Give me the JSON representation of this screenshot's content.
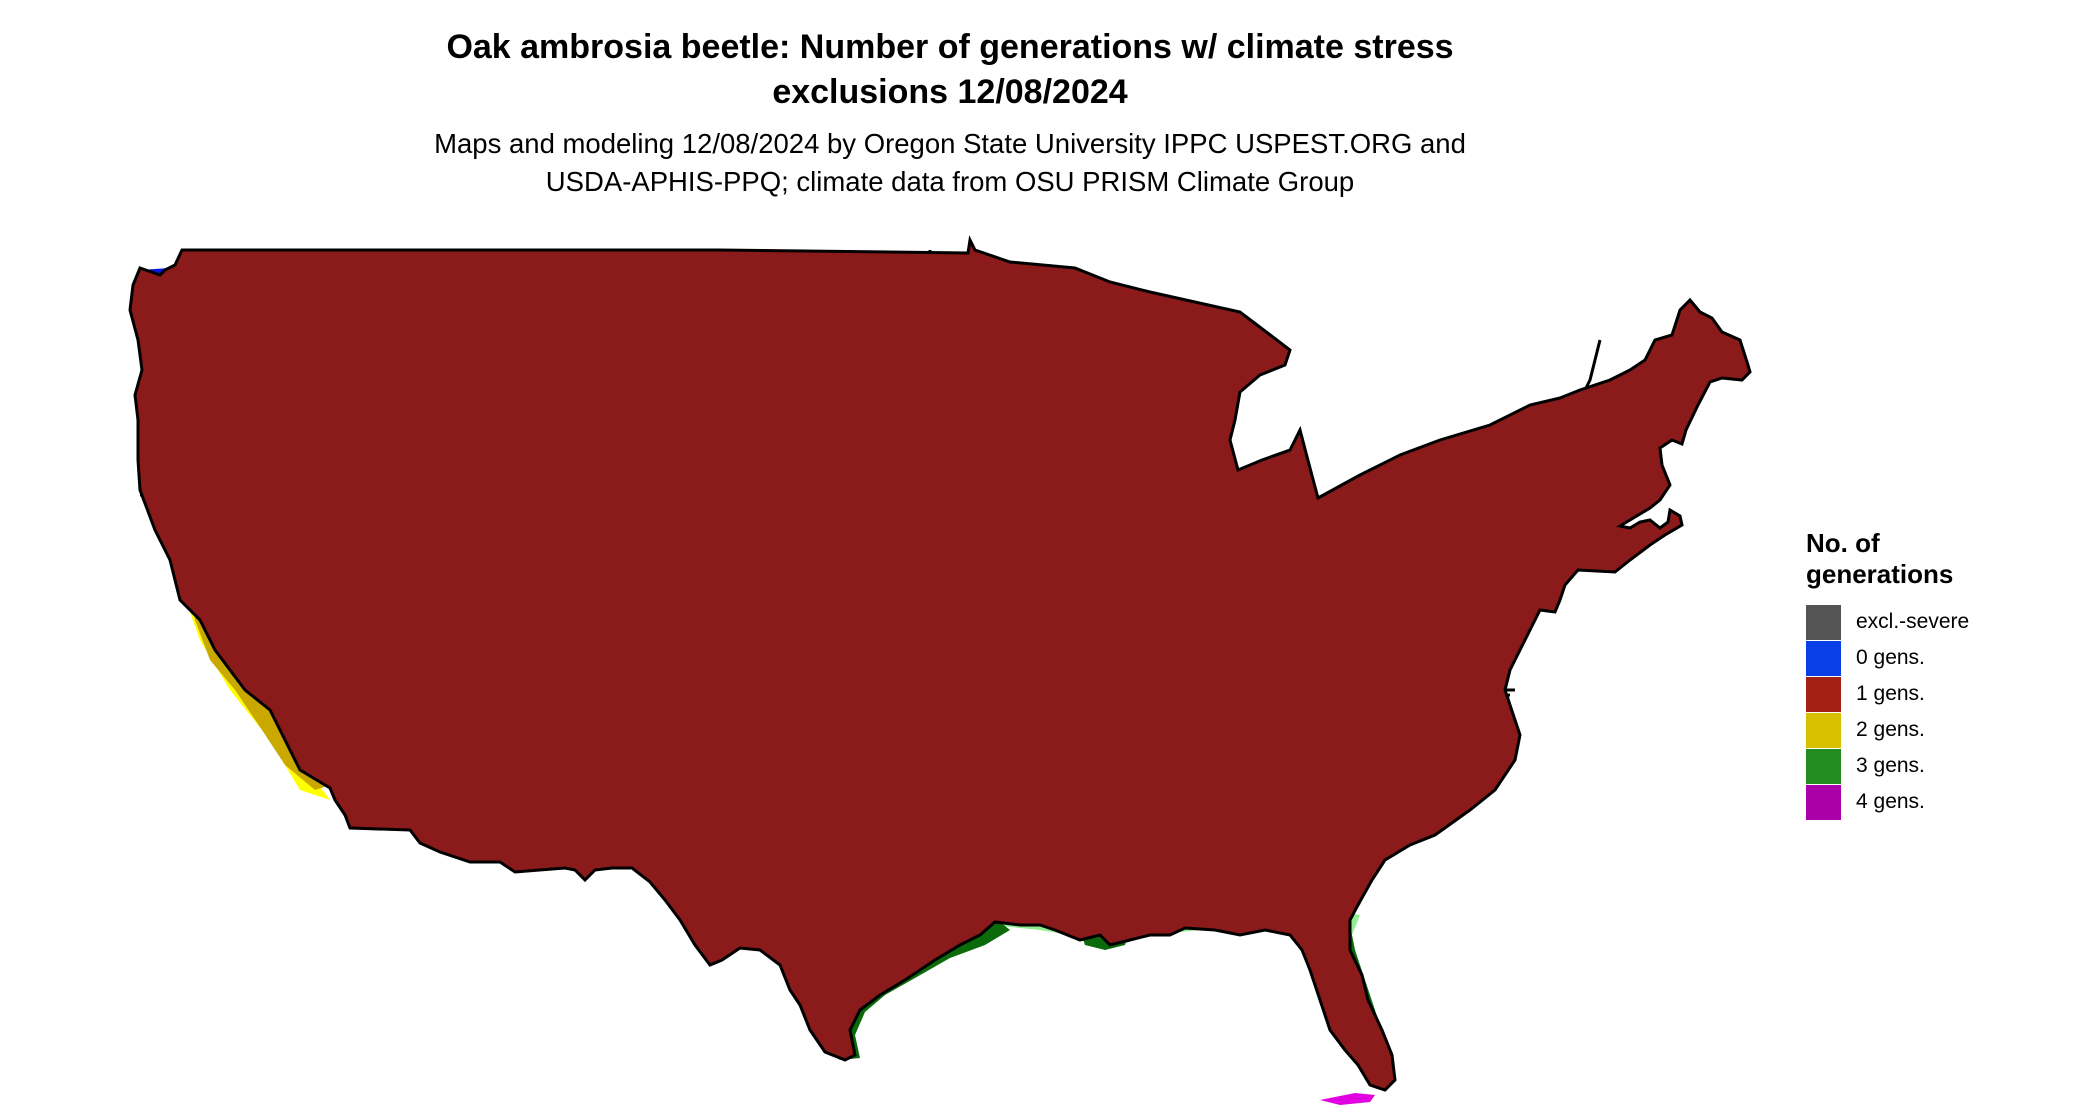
{
  "title_line1": "Oak ambrosia beetle: Number of generations w/ climate stress",
  "title_line2": "exclusions 12/08/2024",
  "subtitle_line1": "Maps and modeling 12/08/2024 by Oregon State University IPPC USPEST.ORG and",
  "subtitle_line2": "USDA-APHIS-PPQ; climate data from OSU PRISM Climate Group",
  "legend": {
    "title_line1": "No. of",
    "title_line2": "generations",
    "items": [
      {
        "label": "excl.-severe",
        "color": "#545454"
      },
      {
        "label": "0 gens.",
        "color": "#0a3ee6"
      },
      {
        "label": "1 gens.",
        "color": "#a22016"
      },
      {
        "label": "2 gens.",
        "color": "#d8c000"
      },
      {
        "label": "3 gens.",
        "color": "#228b22"
      },
      {
        "label": "4 gens.",
        "color": "#aa00aa"
      }
    ]
  },
  "map_colors": {
    "gen1": "#8b1a1a",
    "gen1_warm": "#d84010",
    "gen0": "#0a14e0",
    "excl": "#545454",
    "gen2": "#c9a800",
    "gen2_light": "#ffff00",
    "gen3": "#0b6b0b",
    "gen3_light": "#90ee90",
    "gen4": "#e000e0"
  }
}
